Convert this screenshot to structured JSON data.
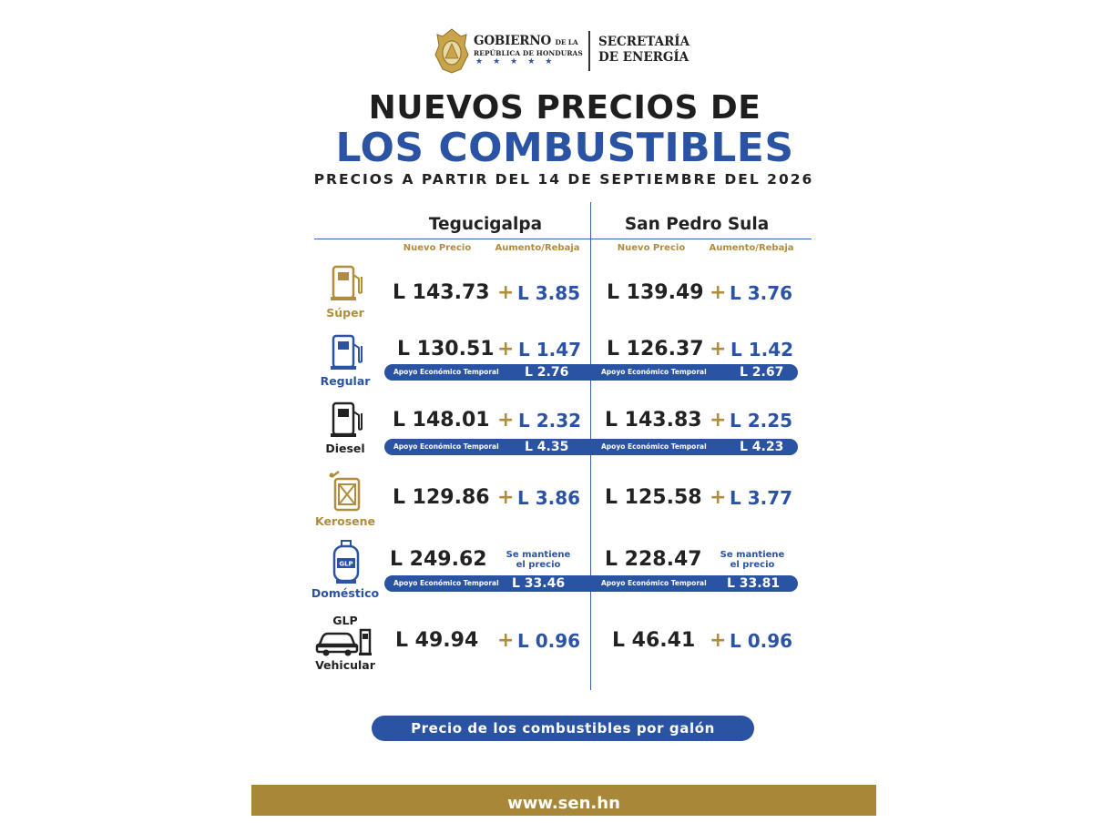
{
  "header": {
    "gov_main": "GOBIERNO",
    "gov_small": "DE LA",
    "gov_sub": "REPÚBLICA DE HONDURAS",
    "gov_stars": "★★★★★",
    "sec_line1": "SECRETARÍA",
    "sec_line2": "DE ENERGÍA"
  },
  "title": {
    "line1": "NUEVOS PRECIOS DE",
    "line2": "LOS COMBUSTIBLES",
    "subtitle": "PRECIOS A PARTIR DEL 14 DE SEPTIEMBRE DEL 2026"
  },
  "cities": {
    "tegucigalpa": "Tegucigalpa",
    "sps": "San Pedro Sula",
    "col_new": "Nuevo Precio",
    "col_change": "Aumento/Rebaja"
  },
  "rows": {
    "super": {
      "label": "Súper",
      "teg_price": "L 143.73",
      "teg_change": "L 3.85",
      "sps_price": "L 139.49",
      "sps_change": "L 3.76"
    },
    "regular": {
      "label": "Regular",
      "teg_price": "L 130.51",
      "teg_change": "L 1.47",
      "sps_price": "L 126.37",
      "sps_change": "L 1.42",
      "teg_support": "L 2.76",
      "sps_support": "L 2.67"
    },
    "diesel": {
      "label": "Diesel",
      "teg_price": "L 148.01",
      "teg_change": "L 2.32",
      "sps_price": "L 143.83",
      "sps_change": "L 2.25",
      "teg_support": "L 4.35",
      "sps_support": "L 4.23"
    },
    "kerosene": {
      "label": "Kerosene",
      "teg_price": "L 129.86",
      "teg_change": "L 3.86",
      "sps_price": "L 125.58",
      "sps_change": "L 3.77"
    },
    "domestico": {
      "label": "Doméstico",
      "teg_price": "L 249.62",
      "teg_keep1": "Se mantiene",
      "teg_keep2": "el precio",
      "sps_price": "L 228.47",
      "sps_keep1": "Se mantiene",
      "sps_keep2": "el precio",
      "teg_support": "L 33.46",
      "sps_support": "L 33.81"
    },
    "vehicular": {
      "label_top": "GLP",
      "label": "Vehicular",
      "teg_price": "L 49.94",
      "teg_change": "L 0.96",
      "sps_price": "L 46.41",
      "sps_change": "L 0.96"
    }
  },
  "support_label": "Apoyo Económico Temporal",
  "plus_sign": "+",
  "footer": {
    "note": "Precio de los combustibles por galón",
    "website": "www.sen.hn"
  },
  "colors": {
    "blue": "#2a53a3",
    "gold": "#b08d3c",
    "bar": "#a88838"
  }
}
